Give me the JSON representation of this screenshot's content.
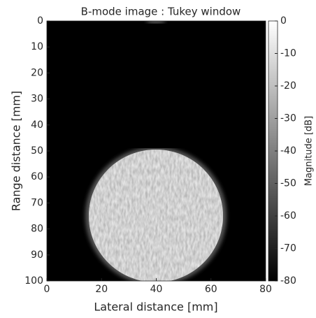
{
  "chart_data": {
    "type": "image",
    "title": "B-mode image : Tukey window",
    "x_label": "Lateral distance [mm]",
    "y_label": "Range distance [mm]",
    "xlim": [
      0,
      80
    ],
    "xticks": [
      0,
      20,
      40,
      60,
      80
    ],
    "ylim": [
      100,
      0
    ],
    "yticks": [
      0,
      10,
      20,
      30,
      40,
      50,
      60,
      70,
      80,
      90,
      100
    ],
    "colormap": "gray",
    "clim": [
      -80,
      0
    ],
    "cticks": [
      0,
      -10,
      -20,
      -30,
      -40,
      -50,
      -60,
      -70,
      -80
    ],
    "colorbar_label": "Magnitude [dB]"
  }
}
